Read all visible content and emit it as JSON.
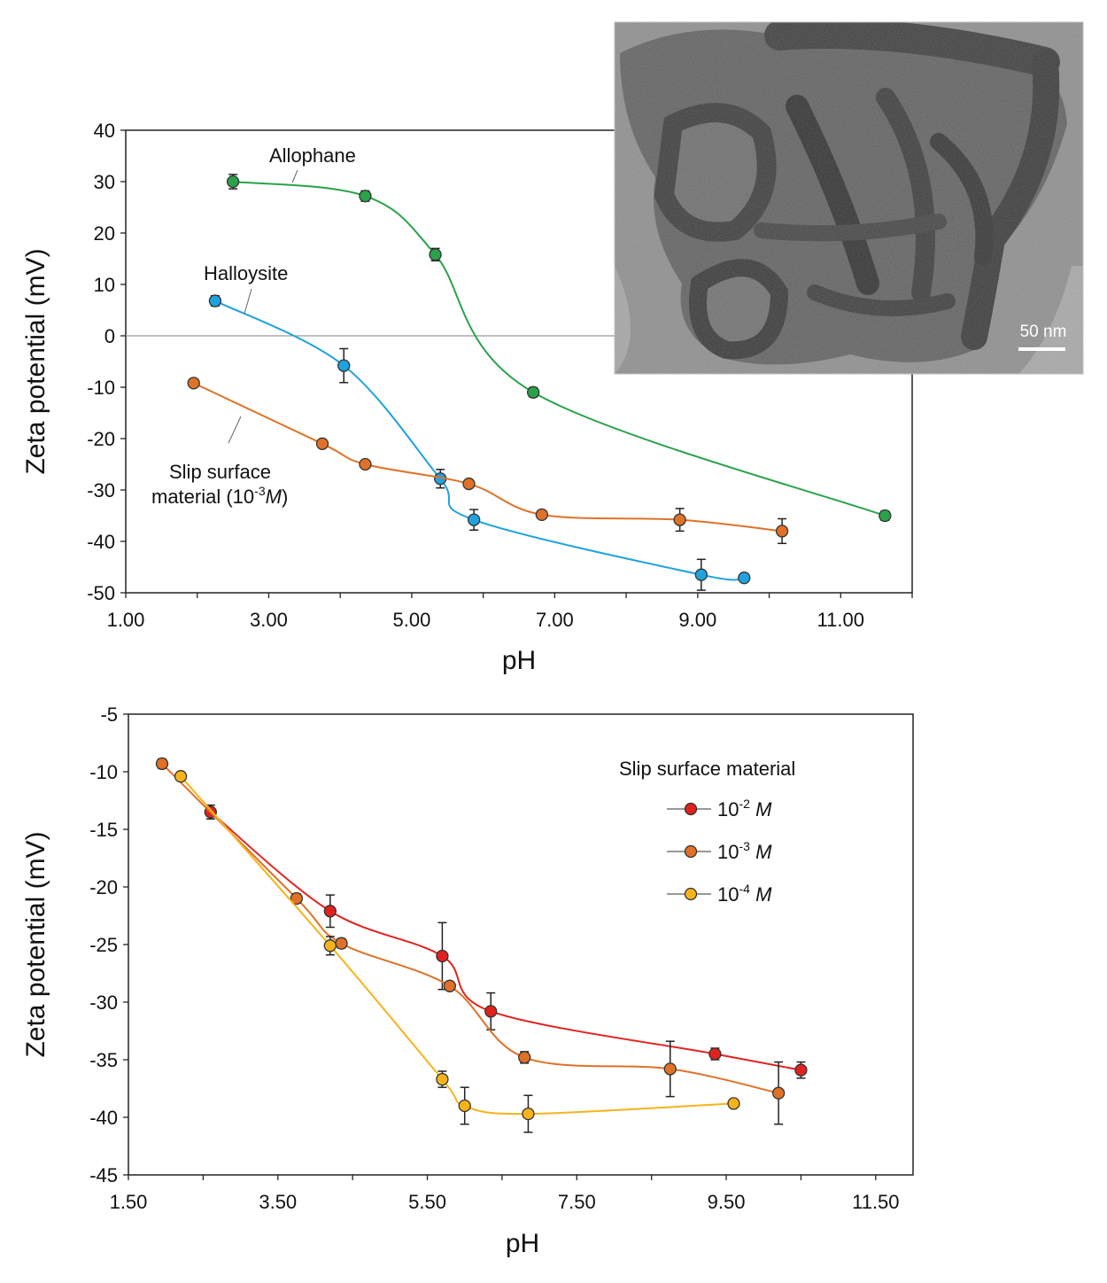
{
  "colors": {
    "allophane": "#2aa24a",
    "halloysite": "#1fa2df",
    "slip": "#e07127",
    "red": "#e0221f",
    "orange": "#e07127",
    "yellow": "#f6b41a",
    "marker_edge": "#333333",
    "axis": "#222222",
    "zero_line": "#9a9a9a"
  },
  "micrograph": {
    "scale_label": "50 nm"
  },
  "chart_data": [
    {
      "id": "top",
      "type": "scatter",
      "xlabel": "pH",
      "ylabel": "Zeta potential (mV)",
      "xlim": [
        1.0,
        12.0
      ],
      "ylim": [
        -50,
        40
      ],
      "x_ticks": [
        "1.00",
        "3.00",
        "5.00",
        "7.00",
        "9.00",
        "11.00"
      ],
      "x_tick_values": [
        1,
        3,
        5,
        7,
        9,
        11
      ],
      "y_ticks": [
        "40",
        "30",
        "20",
        "10",
        "0",
        "-10",
        "-20",
        "-30",
        "-40",
        "-50"
      ],
      "y_tick_values": [
        40,
        30,
        20,
        10,
        0,
        -10,
        -20,
        -30,
        -40,
        -50
      ],
      "zero_line": true,
      "annotations": {
        "allophane": "Allophane",
        "halloysite": "Halloysite",
        "slip_line1": "Slip surface",
        "slip_line2_a": "material (10",
        "slip_line2_sup": "-3",
        "slip_line2_ital": "M",
        "slip_line2_b": ")"
      },
      "series": [
        {
          "name": "Allophane",
          "color_key": "allophane",
          "x": [
            2.5,
            4.35,
            5.33,
            6.7,
            11.62
          ],
          "y": [
            30.0,
            27.2,
            15.8,
            -11.0,
            -35.0
          ],
          "err": [
            1.4,
            1.0,
            1.2,
            0.9,
            0.9
          ]
        },
        {
          "name": "Halloysite",
          "color_key": "halloysite",
          "x": [
            2.25,
            4.05,
            5.4,
            5.87,
            9.05,
            9.65
          ],
          "y": [
            6.8,
            -5.8,
            -27.8,
            -35.8,
            -46.5,
            -47.1
          ],
          "err": [
            1.0,
            3.3,
            1.8,
            2.0,
            3.0,
            0.4
          ]
        },
        {
          "name": "Slip surface material (10-3 M)",
          "color_key": "slip",
          "x": [
            1.95,
            3.75,
            4.35,
            5.8,
            6.82,
            8.75,
            10.18
          ],
          "y": [
            -9.2,
            -21.0,
            -25.0,
            -28.8,
            -34.8,
            -35.8,
            -38.0
          ],
          "err": [
            0.4,
            0.8,
            0.6,
            0.6,
            0.6,
            2.2,
            2.4
          ]
        }
      ]
    },
    {
      "id": "bottom",
      "type": "scatter",
      "xlabel": "pH",
      "ylabel": "Zeta potential (mV)",
      "xlim": [
        1.5,
        12.0
      ],
      "ylim": [
        -45,
        -5
      ],
      "x_ticks": [
        "1.50",
        "3.50",
        "5.50",
        "7.50",
        "9.50",
        "11.50"
      ],
      "x_tick_values": [
        1.5,
        3.5,
        5.5,
        7.5,
        9.5,
        11.5
      ],
      "y_ticks": [
        "-5",
        "-10",
        "-15",
        "-20",
        "-25",
        "-30",
        "-35",
        "-40",
        "-45"
      ],
      "y_tick_values": [
        -5,
        -10,
        -15,
        -20,
        -25,
        -30,
        -35,
        -40,
        -45
      ],
      "legend": {
        "title": "Slip surface material",
        "placement": "top-right",
        "entries": [
          {
            "base": "10",
            "sup": "-2",
            "unit": "M",
            "color_key": "red"
          },
          {
            "base": "10",
            "sup": "-3",
            "unit": "M",
            "color_key": "orange"
          },
          {
            "base": "10",
            "sup": "-4",
            "unit": "M",
            "color_key": "yellow"
          }
        ]
      },
      "series": [
        {
          "name": "10-2 M",
          "color_key": "red",
          "x": [
            2.6,
            4.2,
            5.7,
            6.35,
            9.35,
            10.5
          ],
          "y": [
            -13.5,
            -22.1,
            -26.0,
            -30.8,
            -34.5,
            -35.9
          ],
          "err": [
            0.6,
            1.4,
            2.9,
            1.6,
            0.5,
            0.7
          ]
        },
        {
          "name": "10-3 M",
          "color_key": "orange",
          "x": [
            1.95,
            3.75,
            4.35,
            5.8,
            6.8,
            8.75,
            10.2
          ],
          "y": [
            -9.3,
            -21.0,
            -24.9,
            -28.6,
            -34.8,
            -35.8,
            -37.9
          ],
          "err": [
            0.4,
            0.4,
            0.4,
            0.3,
            0.5,
            2.4,
            2.7
          ]
        },
        {
          "name": "10-4 M",
          "color_key": "yellow",
          "x": [
            2.2,
            4.2,
            5.7,
            6.0,
            6.85,
            9.6
          ],
          "y": [
            -10.4,
            -25.1,
            -36.7,
            -39.0,
            -39.7,
            -38.8
          ],
          "err": [
            0.3,
            0.8,
            0.7,
            1.6,
            1.6,
            0.3
          ]
        }
      ]
    }
  ]
}
